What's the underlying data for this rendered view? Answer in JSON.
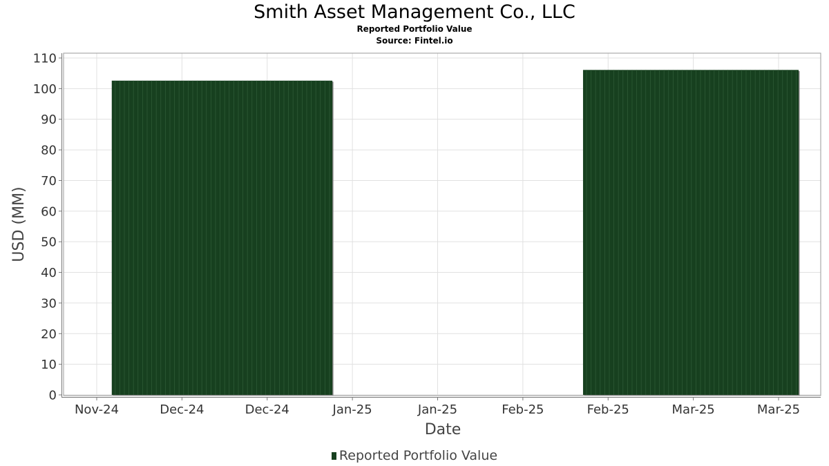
{
  "header": {
    "title": "Smith Asset Management Co., LLC",
    "subtitle_1": "Reported Portfolio Value",
    "subtitle_2": "Source: Fintel.io"
  },
  "colors": {
    "bar_fill": "#17401f",
    "bar_stripe": "#2e5a36",
    "bar_shadow": "#808080",
    "grid": "#e0e0e0",
    "plot_border": "#999999"
  },
  "chart_data": {
    "type": "bar",
    "title": "Smith Asset Management Co., LLC",
    "subtitle": [
      "Reported Portfolio Value",
      "Source: Fintel.io"
    ],
    "xlabel": "Date",
    "ylabel": "USD (MM)",
    "ylim": [
      0,
      110
    ],
    "yticks": [
      0,
      10,
      20,
      30,
      40,
      50,
      60,
      70,
      80,
      90,
      100,
      110
    ],
    "xticks": [
      "Nov-24",
      "Dec-24",
      "Dec-24",
      "Jan-25",
      "Jan-25",
      "Feb-25",
      "Feb-25",
      "Mar-25",
      "Mar-25"
    ],
    "x_range": [
      "2024-11-15",
      "2025-03-31"
    ],
    "grid": true,
    "legend_position": "bottom",
    "series": [
      {
        "name": "Reported Portfolio Value",
        "bars": [
          {
            "start": "2024-11-18",
            "end": "2025-01-01",
            "value": 102.6
          },
          {
            "start": "2025-02-20",
            "end": "2025-04-04",
            "value": 106.1
          }
        ]
      }
    ]
  }
}
